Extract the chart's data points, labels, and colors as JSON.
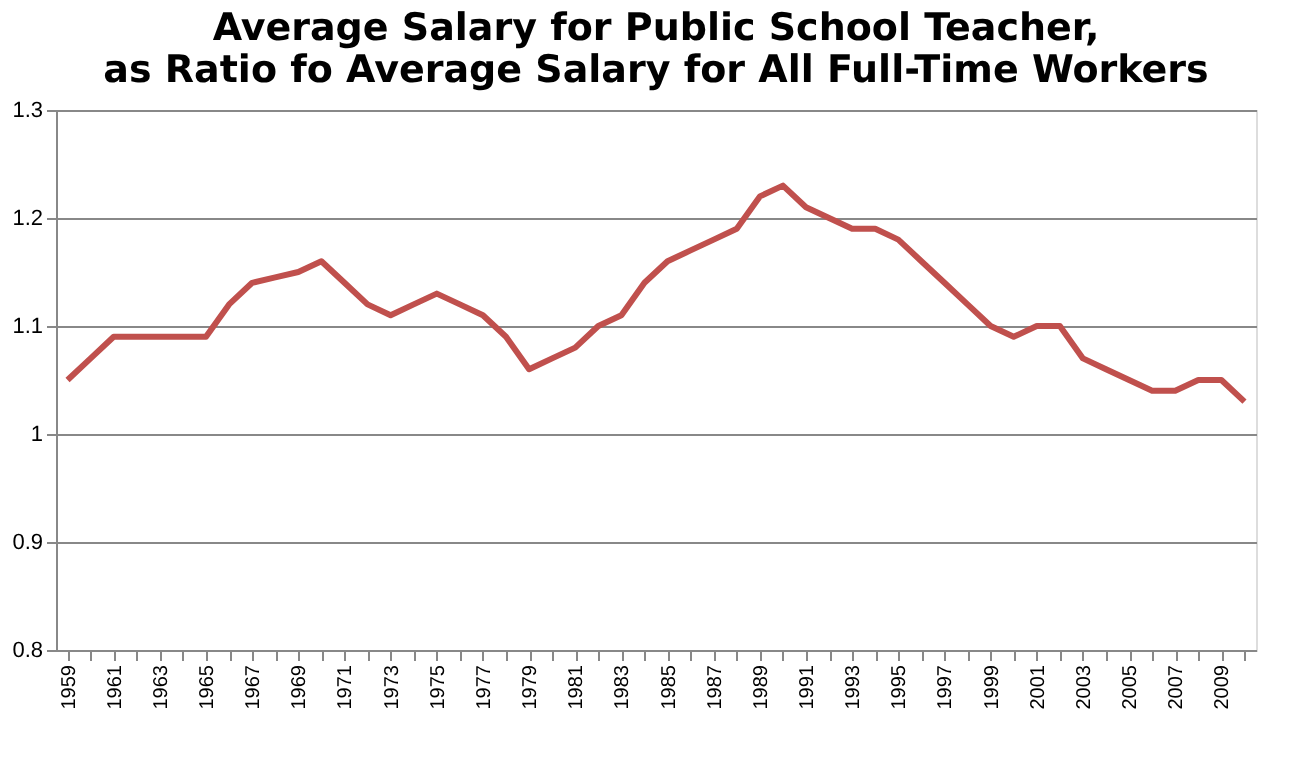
{
  "chart_data": {
    "type": "line",
    "title": [
      "Average Salary for Public School Teacher,",
      "as Ratio fo Average Salary for All Full-Time Workers"
    ],
    "categories": [
      "1959",
      null,
      "1961",
      null,
      "1963",
      null,
      "1965",
      null,
      "1967",
      null,
      "1969",
      null,
      "1971",
      null,
      "1973",
      null,
      "1975",
      null,
      "1977",
      null,
      "1979",
      null,
      "1981",
      null,
      "1983",
      null,
      "1985",
      null,
      "1987",
      null,
      "1989",
      null,
      "1991",
      null,
      "1993",
      null,
      "1995",
      null,
      "1997",
      null,
      "1999",
      null,
      "2001",
      null,
      "2003",
      null,
      "2005",
      null,
      "2007",
      null,
      "2009",
      null
    ],
    "series": [
      {
        "color": "#c0504d",
        "values": [
          1.05,
          1.07,
          1.09,
          1.09,
          1.09,
          1.09,
          1.09,
          1.12,
          1.14,
          1.145,
          1.15,
          1.16,
          1.14,
          1.12,
          1.11,
          1.12,
          1.13,
          1.12,
          1.11,
          1.09,
          1.06,
          1.07,
          1.08,
          1.1,
          1.11,
          1.14,
          1.16,
          1.17,
          1.18,
          1.19,
          1.22,
          1.23,
          1.21,
          1.2,
          1.19,
          1.19,
          1.18,
          1.16,
          1.14,
          1.12,
          1.1,
          1.09,
          1.1,
          1.1,
          1.07,
          1.06,
          1.05,
          1.04,
          1.04,
          1.05,
          1.05,
          1.03
        ]
      }
    ],
    "ylim": [
      0.8,
      1.3
    ],
    "yticks": [
      0.8,
      0.9,
      1,
      1.1,
      1.2,
      1.3
    ],
    "grid": "y",
    "legend": false,
    "marker": "none",
    "line_style": "solid"
  }
}
